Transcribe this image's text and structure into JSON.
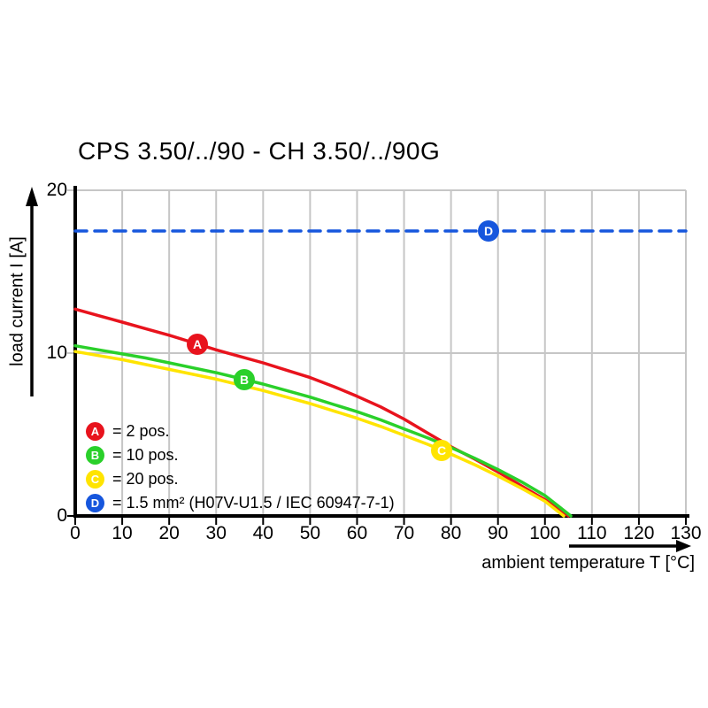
{
  "chart_data": {
    "type": "line",
    "title": "CPS 3.50/../90 - CH 3.50/../90G",
    "xlabel": "ambient temperature T [°C]",
    "ylabel": "load current I [A]",
    "xlim": [
      0,
      130
    ],
    "ylim": [
      0,
      20
    ],
    "x_ticks": [
      0,
      10,
      20,
      30,
      40,
      50,
      60,
      70,
      80,
      90,
      100,
      110,
      120,
      130
    ],
    "y_ticks": [
      0,
      10,
      20
    ],
    "grid": true,
    "legend_position": "inside-bottom-left",
    "series": [
      {
        "name": "2 pos.",
        "color": "#e8131d",
        "style": "solid",
        "marker": {
          "label": "A",
          "t": 26,
          "i": 10.55
        },
        "points": [
          [
            0,
            12.7
          ],
          [
            5,
            12.3
          ],
          [
            10,
            11.9
          ],
          [
            15,
            11.5
          ],
          [
            20,
            11.1
          ],
          [
            25,
            10.65
          ],
          [
            30,
            10.2
          ],
          [
            35,
            9.8
          ],
          [
            40,
            9.4
          ],
          [
            45,
            8.95
          ],
          [
            50,
            8.5
          ],
          [
            55,
            7.95
          ],
          [
            60,
            7.35
          ],
          [
            65,
            6.7
          ],
          [
            70,
            5.95
          ],
          [
            75,
            5.1
          ],
          [
            80,
            4.25
          ],
          [
            85,
            3.5
          ],
          [
            90,
            2.7
          ],
          [
            95,
            1.85
          ],
          [
            100,
            1.0
          ],
          [
            105,
            0
          ]
        ]
      },
      {
        "name": "10 pos.",
        "color": "#2ad02a",
        "style": "solid",
        "marker": {
          "label": "B",
          "t": 36,
          "i": 8.35
        },
        "points": [
          [
            0,
            10.45
          ],
          [
            5,
            10.2
          ],
          [
            10,
            9.95
          ],
          [
            15,
            9.7
          ],
          [
            20,
            9.4
          ],
          [
            25,
            9.1
          ],
          [
            30,
            8.8
          ],
          [
            35,
            8.45
          ],
          [
            40,
            8.1
          ],
          [
            45,
            7.7
          ],
          [
            50,
            7.3
          ],
          [
            55,
            6.85
          ],
          [
            60,
            6.4
          ],
          [
            65,
            5.9
          ],
          [
            70,
            5.35
          ],
          [
            75,
            4.8
          ],
          [
            80,
            4.2
          ],
          [
            85,
            3.55
          ],
          [
            90,
            2.85
          ],
          [
            95,
            2.1
          ],
          [
            100,
            1.25
          ],
          [
            105.5,
            0
          ]
        ]
      },
      {
        "name": "20 pos.",
        "color": "#ffe400",
        "style": "solid",
        "marker": {
          "label": "C",
          "t": 78,
          "i": 4.0
        },
        "points": [
          [
            0,
            10.1
          ],
          [
            5,
            9.85
          ],
          [
            10,
            9.6
          ],
          [
            15,
            9.3
          ],
          [
            20,
            9.0
          ],
          [
            25,
            8.7
          ],
          [
            30,
            8.4
          ],
          [
            35,
            8.05
          ],
          [
            40,
            7.7
          ],
          [
            45,
            7.3
          ],
          [
            50,
            6.9
          ],
          [
            55,
            6.45
          ],
          [
            60,
            6.0
          ],
          [
            65,
            5.5
          ],
          [
            70,
            4.95
          ],
          [
            75,
            4.4
          ],
          [
            80,
            3.8
          ],
          [
            85,
            3.15
          ],
          [
            90,
            2.45
          ],
          [
            95,
            1.7
          ],
          [
            100,
            0.9
          ],
          [
            104,
            0
          ]
        ]
      },
      {
        "name": "1.5 mm² (H07V-U1.5 / IEC 60947-7-1)",
        "color": "#1656dd",
        "style": "dashed",
        "marker": {
          "label": "D",
          "t": 88,
          "i": 17.5
        },
        "points": [
          [
            0,
            17.5
          ],
          [
            130,
            17.5
          ]
        ]
      }
    ],
    "legend": [
      {
        "label": "A",
        "color": "#e8131d",
        "text": "= 2 pos."
      },
      {
        "label": "B",
        "color": "#2ad02a",
        "text": "= 10 pos."
      },
      {
        "label": "C",
        "color": "#ffe400",
        "text": "= 20 pos."
      },
      {
        "label": "D",
        "color": "#1656dd",
        "text": "= 1.5 mm² (H07V-U1.5 / IEC 60947-7-1)"
      }
    ],
    "colors": {
      "grid": "#c6c6c6",
      "axis": "#000000",
      "text": "#000000"
    }
  }
}
